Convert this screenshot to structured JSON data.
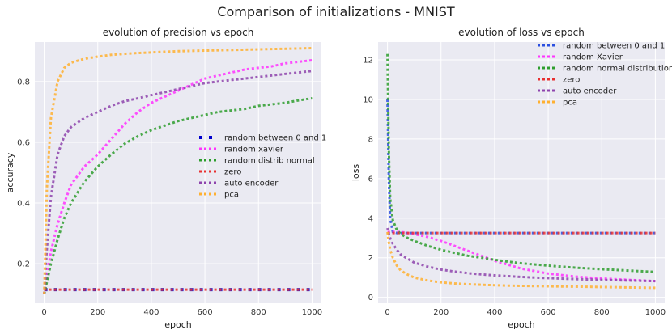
{
  "figure": {
    "suptitle": "Comparison of initializations - MNIST"
  },
  "chart_data": [
    {
      "type": "line",
      "title": "evolution of precision vs epoch",
      "xlabel": "epoch",
      "ylabel": "accuracy",
      "xlim": [
        -35,
        1035
      ],
      "ylim": [
        0.07,
        0.93
      ],
      "xticks": [
        0,
        200,
        400,
        600,
        800,
        1000
      ],
      "yticks": [
        0.2,
        0.4,
        0.6,
        0.8
      ],
      "ytick_labels": [
        "0.2",
        "0.4",
        "0.6",
        "0.8"
      ],
      "grid": true,
      "legend_position": "center-right",
      "x": [
        0,
        10,
        25,
        50,
        75,
        100,
        150,
        200,
        250,
        300,
        350,
        400,
        450,
        500,
        550,
        600,
        650,
        700,
        750,
        800,
        850,
        900,
        950,
        1000
      ],
      "series": [
        {
          "name": "random between 0 and 1",
          "color": "#0000cc",
          "style": "square-dots",
          "values": [
            0.115,
            0.115,
            0.115,
            0.115,
            0.115,
            0.115,
            0.115,
            0.115,
            0.115,
            0.115,
            0.115,
            0.115,
            0.115,
            0.115,
            0.115,
            0.115,
            0.115,
            0.115,
            0.115,
            0.115,
            0.115,
            0.115,
            0.115,
            0.115
          ]
        },
        {
          "name": "random xavier",
          "color": "#ff33ff",
          "style": "dotted",
          "values": [
            0.1,
            0.16,
            0.24,
            0.33,
            0.4,
            0.46,
            0.52,
            0.56,
            0.61,
            0.66,
            0.7,
            0.73,
            0.75,
            0.77,
            0.79,
            0.81,
            0.82,
            0.83,
            0.84,
            0.845,
            0.85,
            0.86,
            0.865,
            0.87
          ]
        },
        {
          "name": "random distrib normal",
          "color": "#2e9e2e",
          "style": "dotted",
          "values": [
            0.1,
            0.14,
            0.2,
            0.28,
            0.35,
            0.4,
            0.47,
            0.52,
            0.56,
            0.595,
            0.62,
            0.64,
            0.655,
            0.67,
            0.68,
            0.69,
            0.7,
            0.705,
            0.71,
            0.72,
            0.725,
            0.73,
            0.738,
            0.745
          ]
        },
        {
          "name": "zero",
          "color": "#e83030",
          "style": "dotted",
          "values": [
            0.115,
            0.115,
            0.115,
            0.115,
            0.115,
            0.115,
            0.115,
            0.115,
            0.115,
            0.115,
            0.115,
            0.115,
            0.115,
            0.115,
            0.115,
            0.115,
            0.115,
            0.115,
            0.115,
            0.115,
            0.115,
            0.115,
            0.115,
            0.115
          ]
        },
        {
          "name": "auto encoder",
          "color": "#8e44ad",
          "style": "dotted",
          "values": [
            0.1,
            0.25,
            0.42,
            0.56,
            0.62,
            0.65,
            0.68,
            0.7,
            0.72,
            0.735,
            0.745,
            0.755,
            0.765,
            0.775,
            0.785,
            0.795,
            0.8,
            0.805,
            0.81,
            0.815,
            0.82,
            0.825,
            0.83,
            0.835
          ]
        },
        {
          "name": "pca",
          "color": "#ffb030",
          "style": "dotted",
          "values": [
            0.1,
            0.45,
            0.68,
            0.8,
            0.845,
            0.862,
            0.875,
            0.882,
            0.888,
            0.891,
            0.894,
            0.896,
            0.898,
            0.9,
            0.901,
            0.902,
            0.903,
            0.904,
            0.905,
            0.906,
            0.907,
            0.908,
            0.909,
            0.91
          ]
        }
      ]
    },
    {
      "type": "line",
      "title": "evolution of loss vs epoch",
      "xlabel": "epoch",
      "ylabel": "loss",
      "xlim": [
        -35,
        1035
      ],
      "ylim": [
        -0.3,
        12.9
      ],
      "xticks": [
        0,
        200,
        400,
        600,
        800,
        1000
      ],
      "yticks": [
        0,
        2,
        4,
        6,
        8,
        10,
        12
      ],
      "ytick_labels": [
        "0",
        "2",
        "4",
        "6",
        "8",
        "10",
        "12"
      ],
      "grid": true,
      "legend_position": "upper-right",
      "x": [
        0,
        2,
        5,
        10,
        20,
        35,
        50,
        75,
        100,
        150,
        200,
        250,
        300,
        350,
        400,
        450,
        500,
        600,
        700,
        800,
        900,
        1000
      ],
      "series": [
        {
          "name": "random between 0 and 1",
          "color": "#2a4fe0",
          "style": "dotted",
          "values": [
            10.0,
            8.5,
            6.0,
            4.0,
            3.3,
            3.25,
            3.25,
            3.25,
            3.25,
            3.25,
            3.25,
            3.25,
            3.25,
            3.25,
            3.25,
            3.25,
            3.25,
            3.25,
            3.25,
            3.25,
            3.25,
            3.25
          ]
        },
        {
          "name": "random Xavier",
          "color": "#ff33ff",
          "style": "dotted",
          "values": [
            3.3,
            3.3,
            3.3,
            3.3,
            3.3,
            3.3,
            3.3,
            3.25,
            3.2,
            3.05,
            2.85,
            2.6,
            2.35,
            2.1,
            1.85,
            1.65,
            1.45,
            1.2,
            1.05,
            0.95,
            0.88,
            0.82
          ]
        },
        {
          "name": "random normal distribution",
          "color": "#2e9e2e",
          "style": "dotted",
          "values": [
            12.3,
            10.5,
            7.5,
            5.0,
            3.9,
            3.4,
            3.2,
            3.0,
            2.85,
            2.6,
            2.4,
            2.25,
            2.1,
            2.0,
            1.9,
            1.8,
            1.72,
            1.6,
            1.5,
            1.42,
            1.35,
            1.28
          ]
        },
        {
          "name": "zero",
          "color": "#e83030",
          "style": "dotted",
          "values": [
            3.25,
            3.25,
            3.25,
            3.25,
            3.25,
            3.25,
            3.25,
            3.25,
            3.25,
            3.25,
            3.25,
            3.25,
            3.25,
            3.25,
            3.25,
            3.25,
            3.25,
            3.25,
            3.25,
            3.25,
            3.25,
            3.25
          ]
        },
        {
          "name": "auto encoder",
          "color": "#8e44ad",
          "style": "dotted",
          "values": [
            3.5,
            3.4,
            3.2,
            3.0,
            2.7,
            2.4,
            2.15,
            1.95,
            1.75,
            1.55,
            1.4,
            1.3,
            1.22,
            1.16,
            1.11,
            1.07,
            1.03,
            0.97,
            0.92,
            0.88,
            0.85,
            0.82
          ]
        },
        {
          "name": "pca",
          "color": "#ffb030",
          "style": "dotted",
          "values": [
            3.3,
            3.1,
            2.8,
            2.4,
            2.0,
            1.6,
            1.35,
            1.15,
            1.0,
            0.85,
            0.76,
            0.7,
            0.66,
            0.63,
            0.61,
            0.59,
            0.58,
            0.56,
            0.54,
            0.52,
            0.5,
            0.48
          ]
        }
      ]
    }
  ]
}
